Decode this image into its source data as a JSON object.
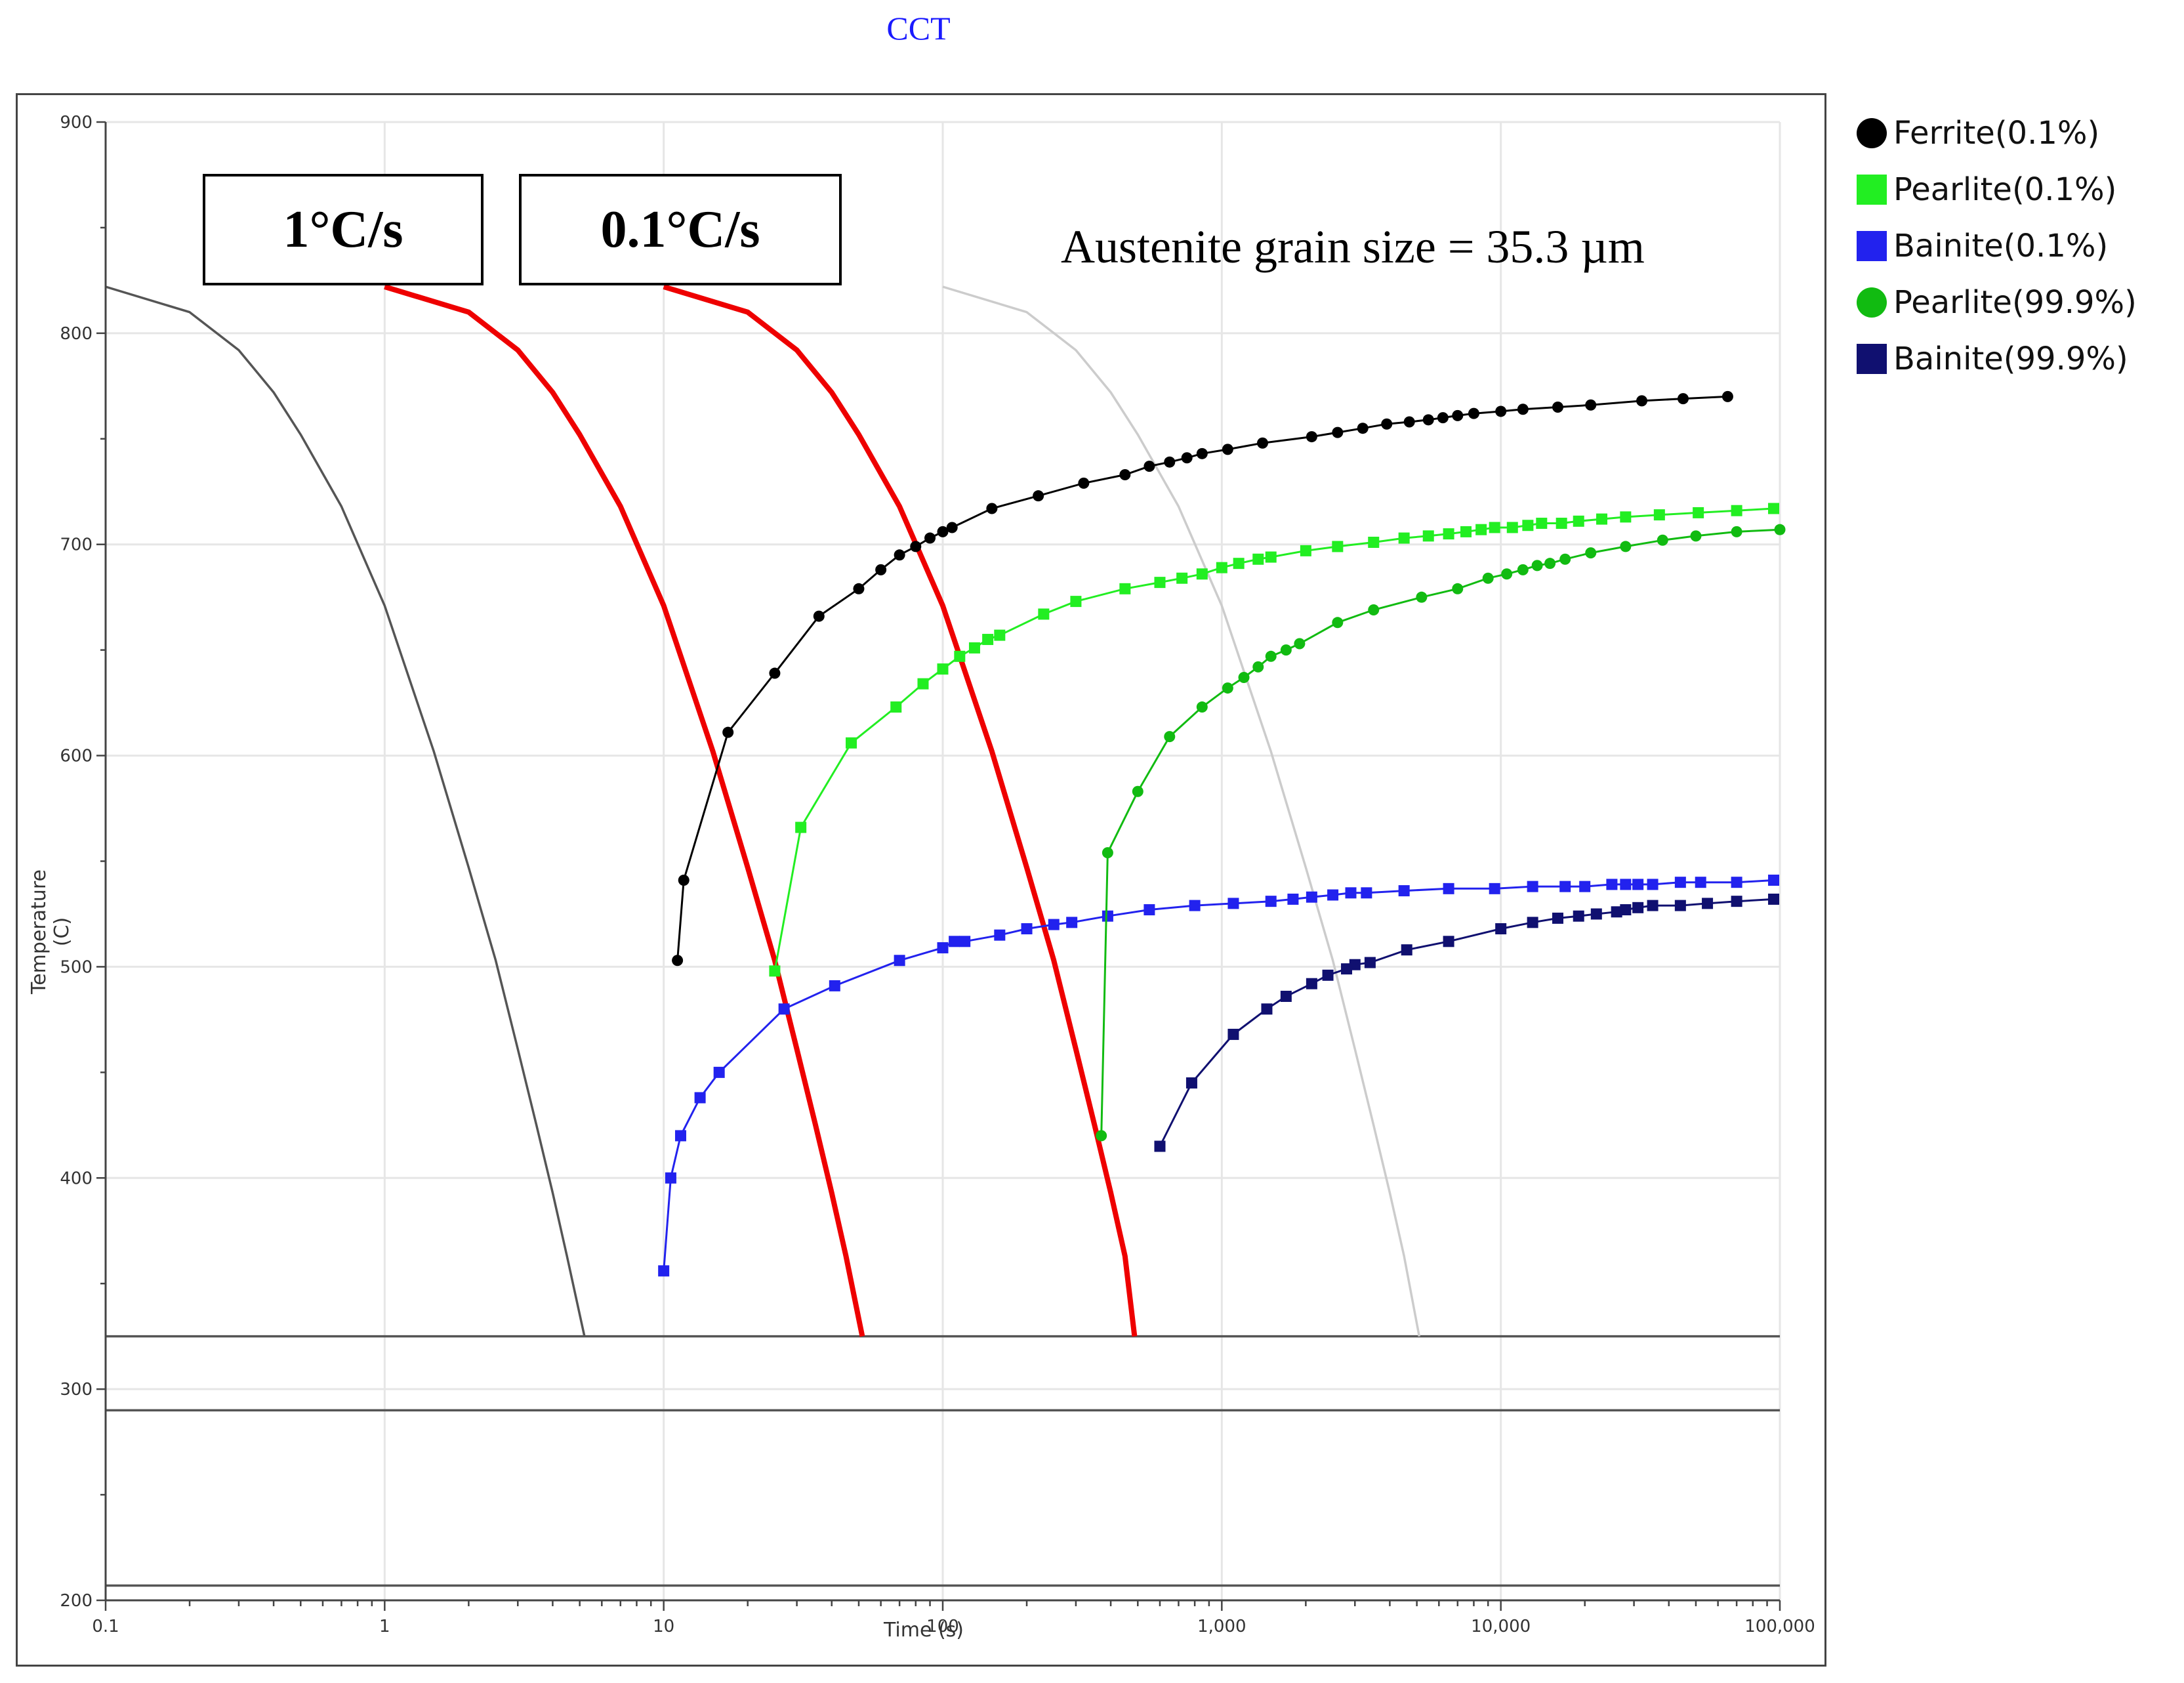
{
  "title": "CCT",
  "annotations": {
    "rate1": "1°C/s",
    "rate2": "0.1°C/s",
    "grain_size": "Austenite grain size = 35.3 µm"
  },
  "chart_data": {
    "type": "line",
    "x_scale": "log",
    "xlabel": "Time (s)",
    "ylabel": "Temperature (C)",
    "xlim": [
      0.1,
      100000
    ],
    "ylim": [
      200,
      900
    ],
    "x_ticks": [
      0.1,
      1,
      10,
      100,
      1000,
      10000,
      100000
    ],
    "x_tick_labels": [
      "0.1",
      "1",
      "10",
      "100",
      "1,000",
      "10,000",
      "100,000"
    ],
    "y_ticks": [
      200,
      300,
      400,
      500,
      600,
      700,
      800,
      900
    ],
    "y_tick_labels": [
      "200",
      "300",
      "400",
      "500",
      "600",
      "700",
      "800",
      "900"
    ],
    "grid": true,
    "legend_position": "right",
    "horizontal_lines": [
      325,
      290,
      207
    ],
    "series": [
      {
        "name": "Ferrite(0.1%)",
        "color": "#000000",
        "marker": "circle",
        "x": [
          11.2,
          11.8,
          17,
          25,
          36,
          50,
          60,
          70,
          80,
          90,
          100,
          108,
          150,
          220,
          320,
          450,
          550,
          650,
          750,
          850,
          1050,
          1400,
          2100,
          2600,
          3200,
          3900,
          4700,
          5500,
          6200,
          7000,
          8000,
          10000,
          12000,
          16000,
          21000,
          32000,
          45000,
          65000
        ],
        "y": [
          503,
          541,
          611,
          639,
          666,
          679,
          688,
          695,
          699,
          703,
          706,
          708,
          717,
          723,
          729,
          733,
          737,
          739,
          741,
          743,
          745,
          748,
          751,
          753,
          755,
          757,
          758,
          759,
          760,
          761,
          762,
          763,
          764,
          765,
          766,
          768,
          769,
          770
        ]
      },
      {
        "name": "Pearlite(0.1%)",
        "color": "#22ee22",
        "marker": "square",
        "x": [
          25,
          31,
          47,
          68,
          85,
          100,
          115,
          130,
          145,
          160,
          230,
          300,
          450,
          600,
          720,
          850,
          1000,
          1150,
          1350,
          1500,
          2000,
          2600,
          3500,
          4500,
          5500,
          6500,
          7500,
          8500,
          9500,
          11000,
          12500,
          14000,
          16500,
          19000,
          23000,
          28000,
          37000,
          51000,
          70000,
          95000
        ],
        "y": [
          498,
          566,
          606,
          623,
          634,
          641,
          647,
          651,
          655,
          657,
          667,
          673,
          679,
          682,
          684,
          686,
          689,
          691,
          693,
          694,
          697,
          699,
          701,
          703,
          704,
          705,
          706,
          707,
          708,
          708,
          709,
          710,
          710,
          711,
          712,
          713,
          714,
          715,
          716,
          717
        ]
      },
      {
        "name": "Bainite(0.1%)",
        "color": "#2222ee",
        "marker": "square",
        "x": [
          10,
          10.6,
          11.5,
          13.5,
          15.8,
          27,
          41,
          70,
          100,
          110,
          120,
          160,
          200,
          250,
          290,
          390,
          550,
          800,
          1100,
          1500,
          1800,
          2100,
          2500,
          2900,
          3300,
          4500,
          6500,
          9500,
          13000,
          17000,
          20000,
          25000,
          28000,
          31000,
          35000,
          44000,
          52000,
          70000,
          95000
        ],
        "y": [
          356,
          400,
          420,
          438,
          450,
          480,
          491,
          503,
          509,
          512,
          512,
          515,
          518,
          520,
          521,
          524,
          527,
          529,
          530,
          531,
          532,
          533,
          534,
          535,
          535,
          536,
          537,
          537,
          538,
          538,
          538,
          539,
          539,
          539,
          539,
          540,
          540,
          540,
          541
        ]
      },
      {
        "name": "Pearlite(99.9%)",
        "color": "#11bb11",
        "marker": "circle",
        "x": [
          370,
          390,
          500,
          650,
          850,
          1050,
          1200,
          1350,
          1500,
          1700,
          1900,
          2600,
          3500,
          5200,
          7000,
          9000,
          10500,
          12000,
          13500,
          15000,
          17000,
          21000,
          28000,
          38000,
          50000,
          70000,
          100000
        ],
        "y": [
          420,
          554,
          583,
          609,
          623,
          632,
          637,
          642,
          647,
          650,
          653,
          663,
          669,
          675,
          679,
          684,
          686,
          688,
          690,
          691,
          693,
          696,
          699,
          702,
          704,
          706,
          707
        ]
      },
      {
        "name": "Bainite(99.9%)",
        "color": "#101070",
        "marker": "square",
        "x": [
          600,
          780,
          1100,
          1450,
          1700,
          2100,
          2400,
          2800,
          3000,
          3400,
          4600,
          6500,
          10000,
          13000,
          16000,
          19000,
          22000,
          26000,
          28000,
          31000,
          35000,
          44000,
          55000,
          70000,
          95000
        ],
        "y": [
          415,
          445,
          468,
          480,
          486,
          492,
          496,
          499,
          501,
          502,
          508,
          512,
          518,
          521,
          523,
          524,
          525,
          526,
          527,
          528,
          529,
          529,
          530,
          531,
          532
        ]
      }
    ],
    "cooling_curves": [
      {
        "color": "#555555",
        "x": [
          0.1,
          0.2,
          0.3,
          0.4,
          0.5,
          0.7,
          1.0,
          1.5,
          2.0,
          2.5,
          3.0,
          3.5,
          4.0,
          4.5,
          5.2
        ],
        "y": [
          822,
          810,
          792,
          772,
          752,
          718,
          671,
          602,
          547,
          503,
          461,
          425,
          393,
          363,
          325
        ]
      },
      {
        "color": "#ee0000",
        "x": [
          1,
          2,
          3,
          4,
          5,
          7,
          10,
          15,
          20,
          25,
          30,
          35,
          40,
          45,
          51.5
        ],
        "y": [
          822,
          810,
          792,
          772,
          752,
          718,
          671,
          602,
          547,
          503,
          461,
          425,
          393,
          363,
          325
        ]
      },
      {
        "color": "#ee0000",
        "x": [
          10,
          20,
          30,
          40,
          50,
          70,
          100,
          150,
          200,
          250,
          300,
          350,
          400,
          450,
          487
        ],
        "y": [
          822,
          810,
          792,
          772,
          752,
          718,
          671,
          602,
          547,
          503,
          461,
          425,
          393,
          363,
          325
        ]
      },
      {
        "color": "#cccccc",
        "x": [
          100,
          200,
          300,
          400,
          500,
          700,
          1000,
          1500,
          2000,
          2500,
          3000,
          3500,
          4000,
          4500,
          5100
        ],
        "y": [
          822,
          810,
          792,
          772,
          752,
          718,
          671,
          602,
          547,
          503,
          461,
          425,
          393,
          363,
          325
        ]
      }
    ]
  }
}
